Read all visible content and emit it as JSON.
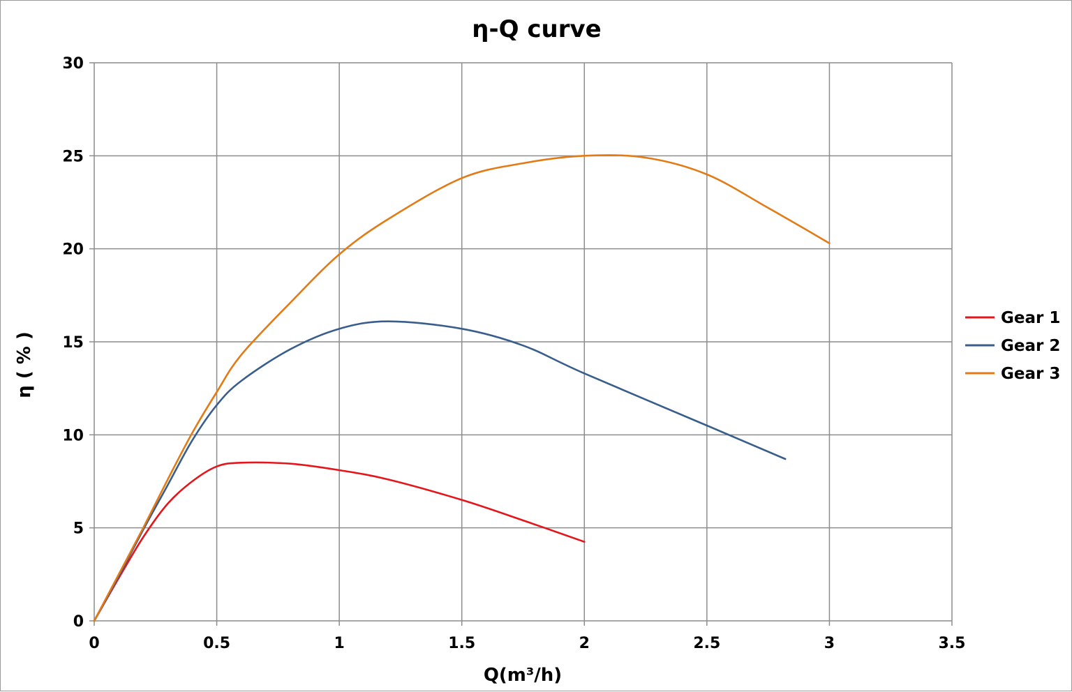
{
  "chart_data": {
    "type": "line",
    "title": "η-Q  curve",
    "xlabel": "Q(m³/h)",
    "ylabel": "η ( % )",
    "xlim": [
      0,
      3.5
    ],
    "ylim": [
      0,
      30
    ],
    "xticks": [
      0,
      0.5,
      1,
      1.5,
      2,
      2.5,
      3,
      3.5
    ],
    "yticks": [
      0,
      5,
      10,
      15,
      20,
      25,
      30
    ],
    "xtick_labels": [
      "0",
      "0.5",
      "1",
      "1.5",
      "2",
      "2.5",
      "3",
      "3.5"
    ],
    "ytick_labels": [
      "0",
      "5",
      "10",
      "15",
      "20",
      "25",
      "30"
    ],
    "grid": true,
    "legend_position": "right",
    "series": [
      {
        "name": "Gear 1",
        "color": "#e3161b",
        "x": [
          0,
          0.1,
          0.2,
          0.3,
          0.4,
          0.5,
          0.6,
          0.8,
          1.0,
          1.2,
          1.5,
          1.75,
          2.0
        ],
        "y": [
          0,
          2.3,
          4.5,
          6.3,
          7.5,
          8.3,
          8.5,
          8.45,
          8.1,
          7.6,
          6.5,
          5.4,
          4.25
        ]
      },
      {
        "name": "Gear 2",
        "color": "#3a5e8c",
        "x": [
          0,
          0.1,
          0.2,
          0.3,
          0.4,
          0.5,
          0.6,
          0.8,
          1.0,
          1.2,
          1.5,
          1.75,
          2.0,
          2.5,
          2.82
        ],
        "y": [
          0,
          2.4,
          4.9,
          7.3,
          9.7,
          11.6,
          12.9,
          14.6,
          15.7,
          16.1,
          15.7,
          14.8,
          13.3,
          10.5,
          8.7
        ]
      },
      {
        "name": "Gear 3",
        "color": "#e27b16",
        "x": [
          0,
          0.1,
          0.2,
          0.3,
          0.4,
          0.5,
          0.6,
          0.8,
          1.0,
          1.2,
          1.5,
          1.75,
          2.0,
          2.25,
          2.5,
          2.75,
          3.0
        ],
        "y": [
          0,
          2.5,
          5.0,
          7.6,
          10.1,
          12.3,
          14.3,
          17.1,
          19.7,
          21.6,
          23.8,
          24.6,
          25.0,
          24.9,
          24.0,
          22.2,
          20.3
        ]
      }
    ]
  }
}
